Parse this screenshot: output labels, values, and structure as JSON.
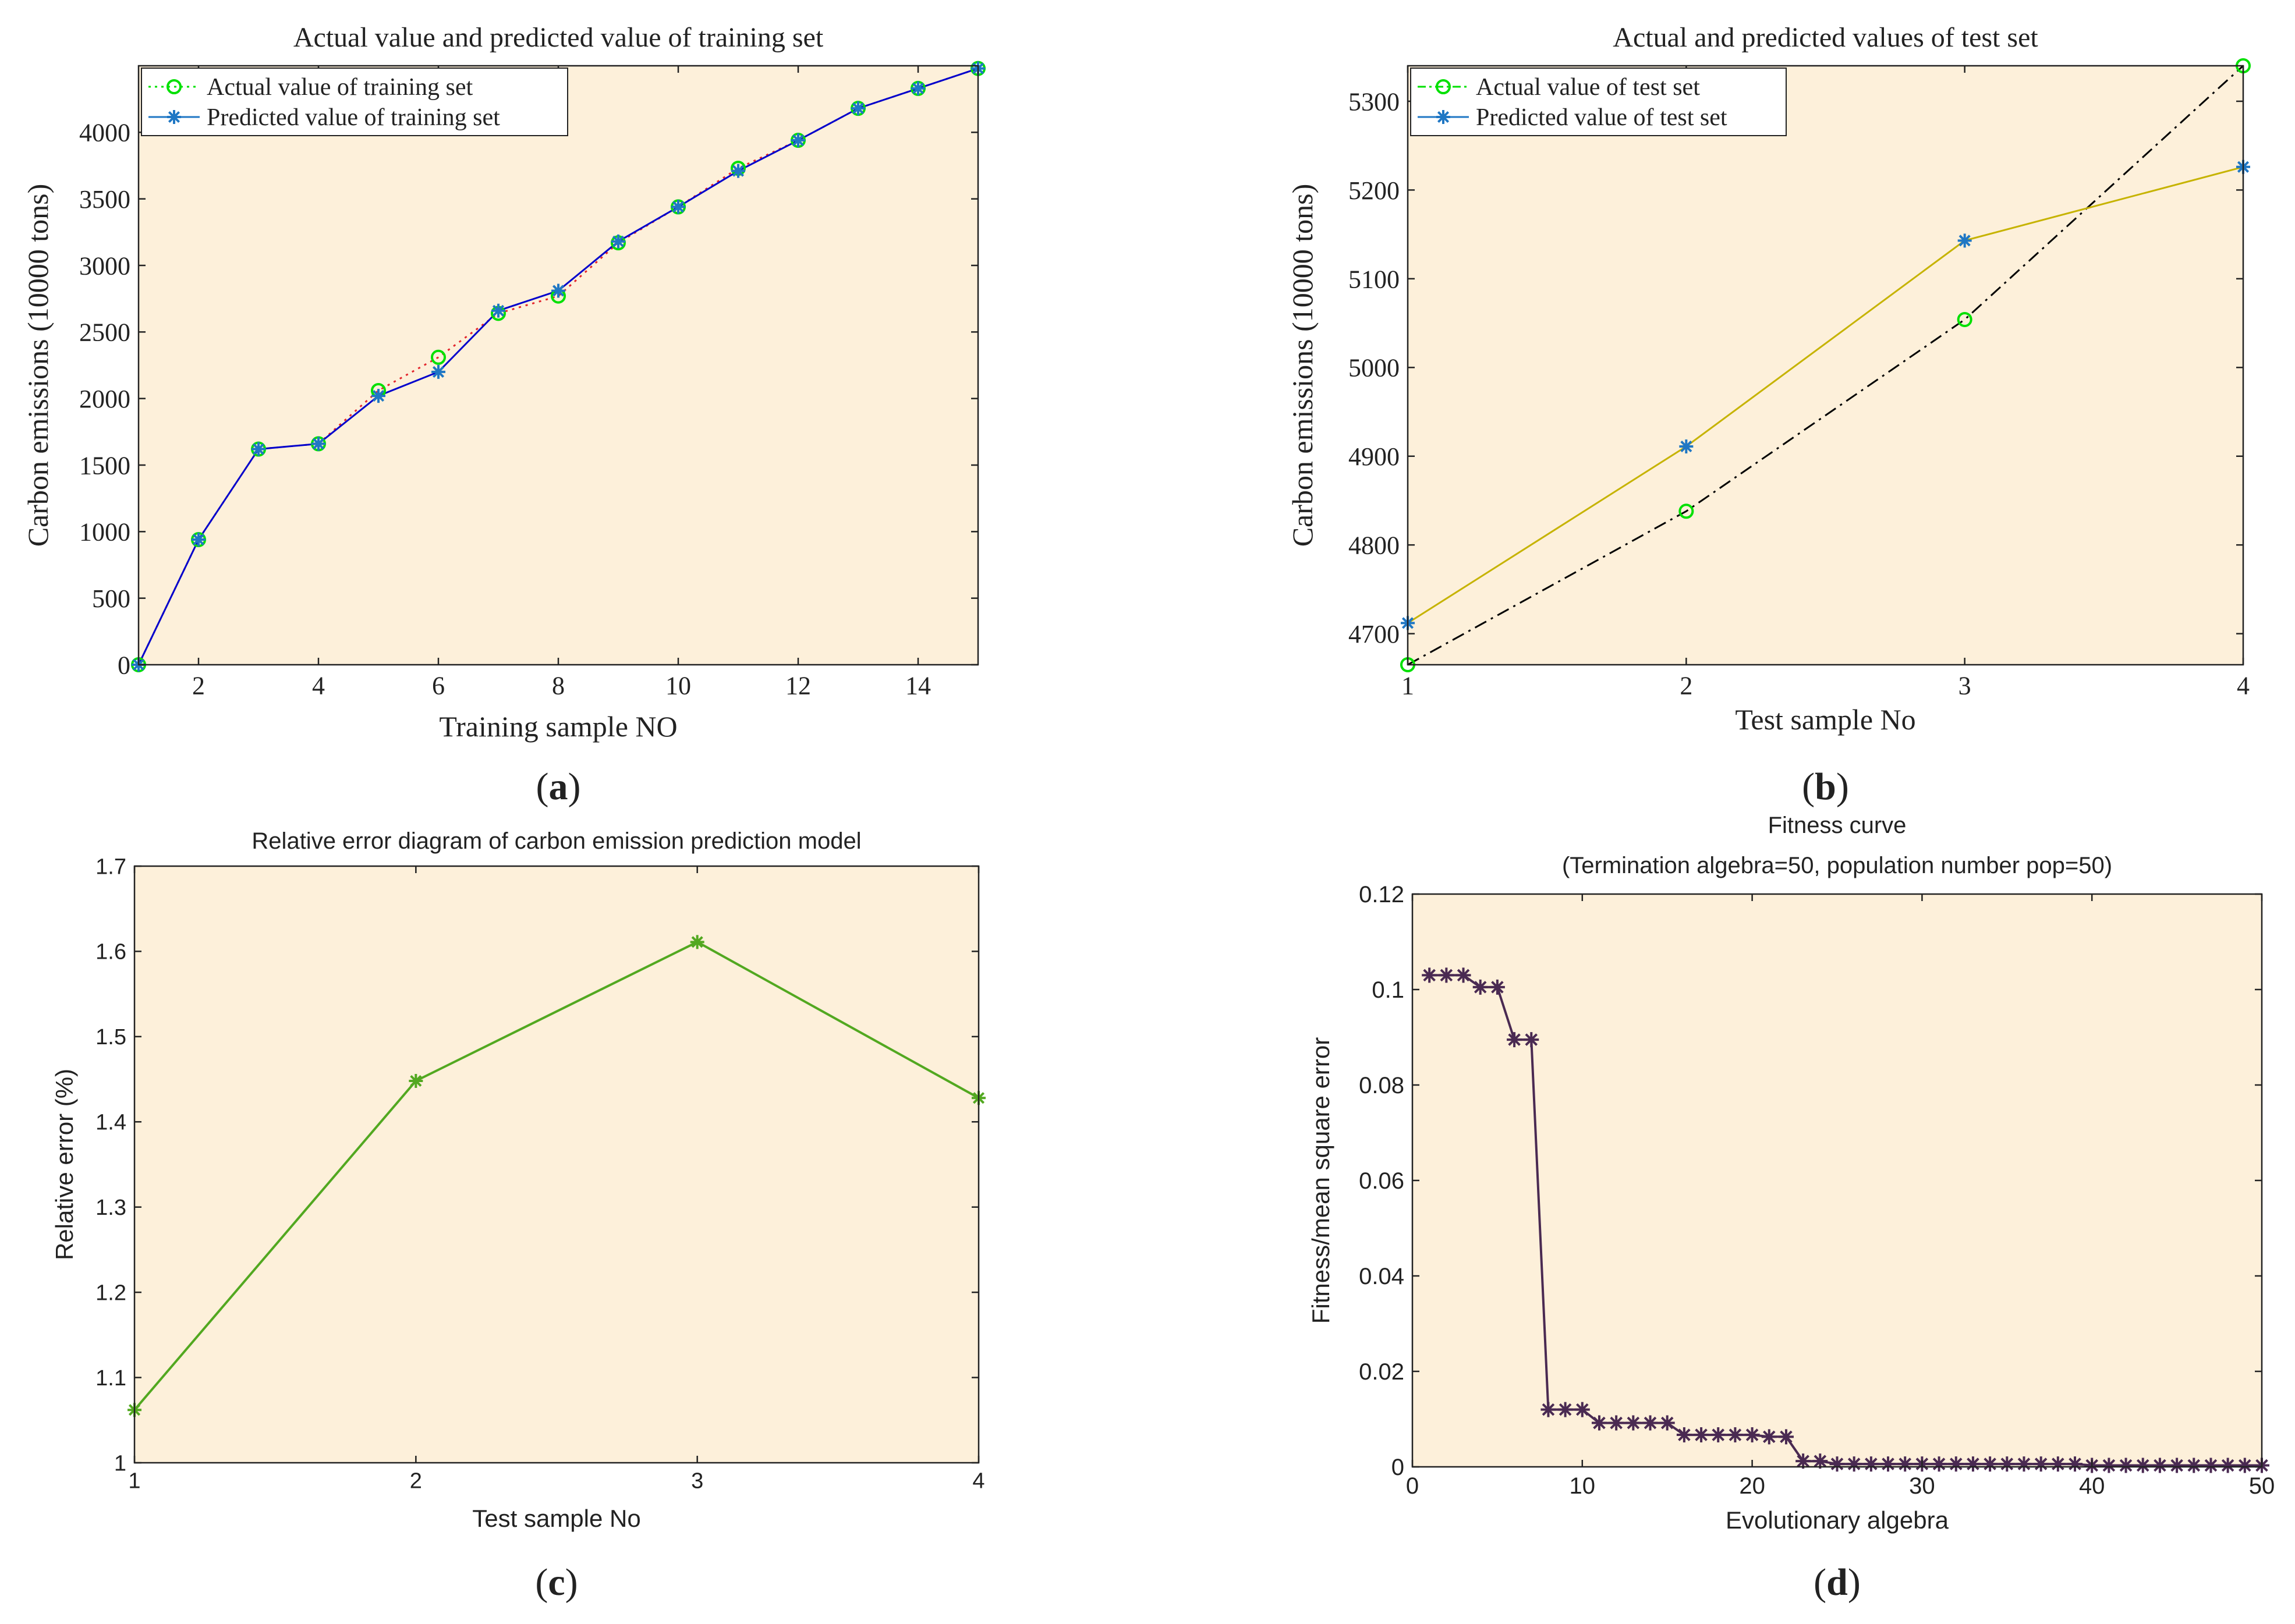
{
  "colors": {
    "plot_bg": "#fdf0da",
    "axis": "#222222",
    "green_marker": "#00e000",
    "blue": "#1f77c4",
    "dark_blue": "#0000cc",
    "red_dash": "#e3262d",
    "olive": "#c6b300",
    "black": "#000000",
    "green_line": "#52a820",
    "purple": "#4a2a52"
  },
  "chart_data": [
    {
      "panel_label": "a",
      "type": "line",
      "title": "Actual value and predicted value of training set",
      "xlabel": "Training sample NO",
      "ylabel": "Carbon emissions (10000 tons)",
      "xlim": [
        1,
        15
      ],
      "ylim": [
        0,
        4500
      ],
      "xticks": [
        2,
        4,
        6,
        8,
        10,
        12,
        14
      ],
      "yticks": [
        0,
        500,
        1000,
        1500,
        2000,
        2500,
        3000,
        3500,
        4000
      ],
      "grid": false,
      "legend_position": "top-left",
      "x": [
        1,
        2,
        3,
        4,
        5,
        6,
        7,
        8,
        9,
        10,
        11,
        12,
        13,
        14,
        15
      ],
      "series": [
        {
          "name": "Actual value of training set",
          "values": [
            0,
            940,
            1620,
            1660,
            2060,
            2310,
            2640,
            2770,
            3170,
            3440,
            3730,
            3940,
            4180,
            4330,
            4480
          ],
          "marker": "circle",
          "line": "dotted",
          "color": "#00e000",
          "connector_color": "#e3262d"
        },
        {
          "name": "Predicted value of training set",
          "values": [
            0,
            940,
            1620,
            1660,
            2020,
            2200,
            2660,
            2810,
            3180,
            3440,
            3710,
            3940,
            4180,
            4330,
            4480
          ],
          "marker": "star",
          "line": "solid",
          "color": "#1f77c4",
          "connector_color": "#0000cc"
        }
      ]
    },
    {
      "panel_label": "b",
      "type": "line",
      "title": "Actual and predicted values of test set",
      "xlabel": "Test sample No",
      "ylabel": "Carbon emissions (10000 tons)",
      "xlim": [
        1,
        4
      ],
      "ylim": [
        4665,
        5340
      ],
      "xticks": [
        1,
        2,
        3,
        4
      ],
      "yticks": [
        4700,
        4800,
        4900,
        5000,
        5100,
        5200,
        5300
      ],
      "grid": false,
      "legend_position": "top-left",
      "x": [
        1,
        2,
        3,
        4
      ],
      "series": [
        {
          "name": "Actual value of test set",
          "values": [
            4665,
            4838,
            5054,
            5340
          ],
          "marker": "circle",
          "line": "dashdot",
          "color": "#00e000",
          "connector_color": "#000000"
        },
        {
          "name": "Predicted value of test set",
          "values": [
            4712,
            4911,
            5143,
            5226
          ],
          "marker": "star",
          "line": "solid",
          "color": "#1f77c4",
          "connector_color": "#c6b300"
        }
      ]
    },
    {
      "panel_label": "c",
      "type": "line",
      "title": "Relative error diagram of carbon emission prediction model",
      "xlabel": "Test sample No",
      "ylabel": "Relative error (%)",
      "xlim": [
        1,
        4
      ],
      "ylim": [
        1,
        1.7
      ],
      "xticks": [
        1,
        2,
        3,
        4
      ],
      "yticks": [
        1,
        1.1,
        1.2,
        1.3,
        1.4,
        1.5,
        1.6,
        1.7
      ],
      "grid": false,
      "x": [
        1,
        2,
        3,
        4
      ],
      "series": [
        {
          "values": [
            1.062,
            1.448,
            1.611,
            1.428
          ],
          "marker": "star",
          "color": "#52a820"
        }
      ]
    },
    {
      "panel_label": "d",
      "type": "line",
      "title": "Fitness curve",
      "subtitle": "(Termination algebra=50, population number pop=50)",
      "xlabel": "Evolutionary algebra",
      "ylabel": "Fitness/mean square error",
      "xlim": [
        0,
        50
      ],
      "ylim": [
        0,
        0.12
      ],
      "xticks": [
        0,
        10,
        20,
        30,
        40,
        50
      ],
      "yticks": [
        0,
        0.02,
        0.04,
        0.06,
        0.08,
        0.1,
        0.12
      ],
      "grid": false,
      "x": [
        1,
        2,
        3,
        4,
        5,
        6,
        7,
        8,
        9,
        10,
        11,
        12,
        13,
        14,
        15,
        16,
        17,
        18,
        19,
        20,
        21,
        22,
        23,
        24,
        25,
        26,
        27,
        28,
        29,
        30,
        31,
        32,
        33,
        34,
        35,
        36,
        37,
        38,
        39,
        40,
        41,
        42,
        43,
        44,
        45,
        46,
        47,
        48,
        49,
        50
      ],
      "series": [
        {
          "values": [
            0.103,
            0.103,
            0.103,
            0.1005,
            0.1005,
            0.0895,
            0.0895,
            0.012,
            0.012,
            0.012,
            0.0092,
            0.0092,
            0.0092,
            0.0092,
            0.0092,
            0.0067,
            0.0067,
            0.0067,
            0.0067,
            0.0067,
            0.0063,
            0.0063,
            0.0012,
            0.0012,
            0.0006,
            0.0006,
            0.0006,
            0.0006,
            0.0006,
            0.0006,
            0.0006,
            0.0006,
            0.0006,
            0.0006,
            0.0006,
            0.0006,
            0.0006,
            0.0006,
            0.0006,
            0.0003,
            0.0003,
            0.0003,
            0.0003,
            0.0003,
            0.0003,
            0.0003,
            0.0003,
            0.0003,
            0.0003,
            0.0003
          ],
          "marker": "star",
          "color": "#4a2a52"
        }
      ]
    }
  ]
}
